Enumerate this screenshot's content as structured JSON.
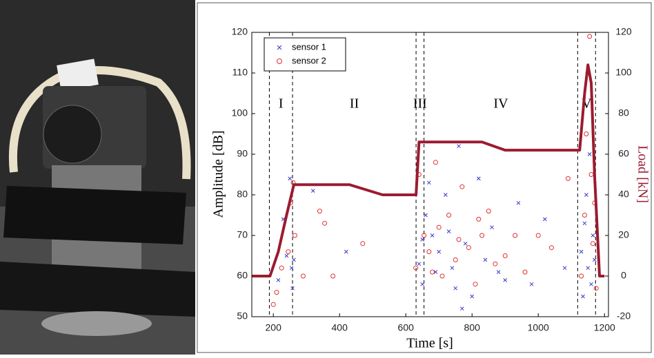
{
  "chart_data": {
    "type": "scatter",
    "x_label": "Time [s]",
    "y_label": "Amplitude [dB]",
    "y2_label": "Load [kN]",
    "xlim": [
      135,
      1212
    ],
    "ylim": [
      50,
      120
    ],
    "y2lim": [
      -20,
      120
    ],
    "xticks": [
      200,
      400,
      600,
      800,
      1000,
      1200
    ],
    "yticks": [
      50,
      60,
      70,
      80,
      90,
      100,
      110,
      120
    ],
    "y2ticks": [
      -20,
      0,
      20,
      40,
      60,
      80,
      100,
      120
    ],
    "legend": "upper left",
    "phases": [
      "I",
      "II",
      "III",
      "IV",
      "V"
    ],
    "phase_boundaries": [
      188,
      258,
      631,
      655,
      1119,
      1173
    ],
    "series": [
      {
        "name": "sensor 1",
        "color": "#3a3ad0",
        "marker": "x",
        "x": [
          250,
          255,
          258,
          240,
          262,
          230,
          215,
          320,
          420,
          640,
          650,
          660,
          680,
          700,
          720,
          740,
          760,
          780,
          800,
          820,
          840,
          860,
          880,
          900,
          940,
          980,
          1020,
          1080,
          1130,
          1135,
          1140,
          1145,
          1150,
          1155,
          1160,
          1165,
          1170,
          690,
          730,
          770,
          650,
          670,
          750
        ],
        "values": [
          84,
          62,
          57,
          65,
          64,
          74,
          59,
          81,
          66,
          63,
          58,
          75,
          70,
          66,
          80,
          62,
          92,
          68,
          55,
          84,
          64,
          72,
          61,
          59,
          78,
          58,
          74,
          62,
          66,
          55,
          73,
          80,
          62,
          90,
          58,
          70,
          64,
          61,
          71,
          52,
          69,
          83,
          57
        ]
      },
      {
        "name": "sensor 2",
        "color": "#e03030",
        "marker": "o",
        "x": [
          200,
          210,
          225,
          245,
          252,
          260,
          265,
          290,
          340,
          355,
          380,
          470,
          630,
          640,
          655,
          670,
          690,
          710,
          730,
          750,
          770,
          790,
          810,
          830,
          850,
          870,
          900,
          930,
          960,
          1000,
          1040,
          1090,
          1130,
          1140,
          1145,
          1150,
          1155,
          1160,
          1165,
          1170,
          1175,
          700,
          760,
          680,
          820
        ],
        "values": [
          53,
          56,
          62,
          66,
          78,
          83,
          70,
          60,
          76,
          73,
          60,
          68,
          62,
          85,
          70,
          66,
          88,
          60,
          75,
          64,
          82,
          67,
          58,
          70,
          76,
          63,
          65,
          70,
          61,
          70,
          67,
          84,
          60,
          75,
          95,
          110,
          119,
          85,
          68,
          78,
          57,
          72,
          69,
          61,
          74
        ]
      }
    ],
    "load": {
      "color": "#9b1b30",
      "axis": "y2",
      "x": [
        135,
        190,
        215,
        240,
        262,
        300,
        430,
        530,
        631,
        640,
        655,
        830,
        900,
        1125,
        1140,
        1150,
        1160,
        1170,
        1185,
        1200
      ],
      "values": [
        0,
        0,
        12,
        30,
        45,
        45,
        45,
        40,
        40,
        66,
        66,
        66,
        62,
        62,
        90,
        104,
        95,
        50,
        0,
        0
      ]
    }
  }
}
